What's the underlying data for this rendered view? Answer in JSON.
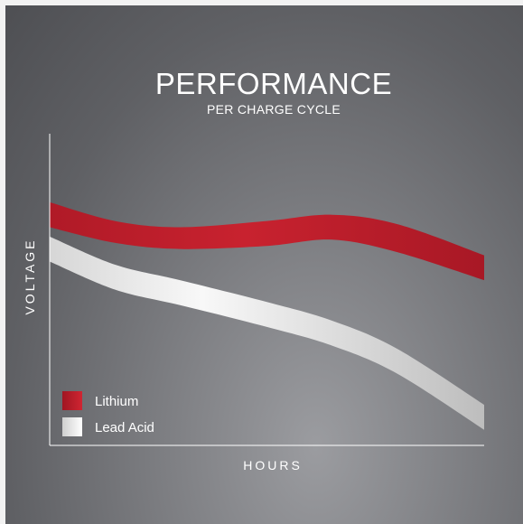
{
  "chart_data": {
    "type": "area",
    "title": "PERFORMANCE",
    "subtitle": "PER CHARGE CYCLE",
    "xlabel": "HOURS",
    "ylabel": "VOLTAGE",
    "grid": false,
    "axis_ticks": false,
    "legend_placement": "bottom-left",
    "series": [
      {
        "name": "Lithium",
        "color": "#c0202d",
        "band": [
          {
            "x": 0.0,
            "lower": 0.7,
            "upper": 0.78
          },
          {
            "x": 0.15,
            "lower": 0.65,
            "upper": 0.72
          },
          {
            "x": 0.3,
            "lower": 0.63,
            "upper": 0.7
          },
          {
            "x": 0.5,
            "lower": 0.64,
            "upper": 0.72
          },
          {
            "x": 0.65,
            "lower": 0.66,
            "upper": 0.74
          },
          {
            "x": 0.8,
            "lower": 0.62,
            "upper": 0.71
          },
          {
            "x": 1.0,
            "lower": 0.53,
            "upper": 0.61
          }
        ]
      },
      {
        "name": "Lead Acid",
        "color": "#e6e6e6",
        "band": [
          {
            "x": 0.0,
            "lower": 0.59,
            "upper": 0.67
          },
          {
            "x": 0.15,
            "lower": 0.5,
            "upper": 0.58
          },
          {
            "x": 0.3,
            "lower": 0.45,
            "upper": 0.53
          },
          {
            "x": 0.5,
            "lower": 0.38,
            "upper": 0.46
          },
          {
            "x": 0.65,
            "lower": 0.32,
            "upper": 0.4
          },
          {
            "x": 0.8,
            "lower": 0.23,
            "upper": 0.31
          },
          {
            "x": 1.0,
            "lower": 0.05,
            "upper": 0.13
          }
        ]
      }
    ]
  }
}
